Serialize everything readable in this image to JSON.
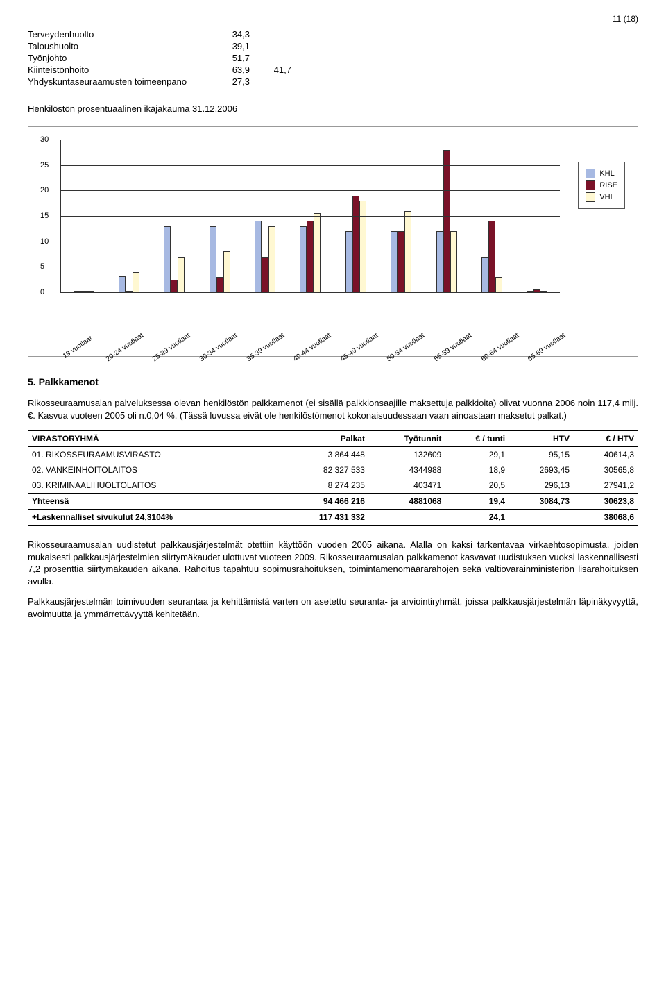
{
  "page_number": "11 (18)",
  "top_rows": [
    {
      "label": "Terveydenhuolto",
      "v1": "34,3",
      "v2": ""
    },
    {
      "label": "Taloushuolto",
      "v1": "39,1",
      "v2": ""
    },
    {
      "label": "Työnjohto",
      "v1": "51,7",
      "v2": ""
    },
    {
      "label": "Kiinteistönhoito",
      "v1": "63,9",
      "v2": "41,7"
    },
    {
      "label": "Yhdyskuntaseuraamusten toimeenpano",
      "v1": "27,3",
      "v2": ""
    }
  ],
  "chart": {
    "title": "Henkilöstön prosentuaalinen ikäjakauma 31.12.2006",
    "ymax": 30,
    "ytick_step": 5,
    "categories": [
      "19 vuotiaat",
      "20-24 vuotiaat",
      "25-29 vuotiaat",
      "30-34 vuotiaat",
      "35-39 vuotiaat",
      "40-44 vuotiaat",
      "45-49 vuotiaat",
      "50-54 vuotiaat",
      "55-59 vuotiaat",
      "60-64 vuotiaat",
      "65-69 vuotiaat"
    ],
    "series": [
      {
        "name": "KHL",
        "color": "#a7b9e2",
        "values": [
          0.3,
          3.2,
          13,
          13,
          14,
          13,
          12,
          12,
          12,
          7,
          0
        ]
      },
      {
        "name": "RISE",
        "color": "#7a1228",
        "values": [
          0,
          0.3,
          2.5,
          3,
          7,
          14,
          19,
          12,
          28,
          14,
          0.5
        ]
      },
      {
        "name": "VHL",
        "color": "#fff8d2",
        "values": [
          0,
          4,
          7,
          8,
          13,
          15.5,
          18,
          16,
          12,
          3,
          0
        ]
      }
    ],
    "background": "#ffffff",
    "grid_color": "#333333"
  },
  "section5_heading": "5. Palkkamenot",
  "para1": "Rikosseuraamusalan palveluksessa olevan henkilöstön palkkamenot (ei sisällä palkkionsaajille maksettuja palkkioita) olivat vuonna 2006 noin 117,4 milj. €. Kasvua vuoteen 2005 oli n.0,04 %. (Tässä luvussa eivät ole henkilöstömenot kokonaisuudessaan vaan ainoastaan maksetut palkat.)",
  "table": {
    "columns": [
      "VIRASTORYHMÄ",
      "Palkat",
      "Työtunnit",
      "€ / tunti",
      "HTV",
      "€ / HTV"
    ],
    "rows": [
      [
        "01. RIKOSSEURAAMUSVIRASTO",
        "3 864 448",
        "132609",
        "29,1",
        "95,15",
        "40614,3"
      ],
      [
        "02. VANKEINHOITOLAITOS",
        "82 327 533",
        "4344988",
        "18,9",
        "2693,45",
        "30565,8"
      ],
      [
        "03. KRIMINAALIHUOLTOLAITOS",
        "8 274 235",
        "403471",
        "20,5",
        "296,13",
        "27941,2"
      ]
    ],
    "total": [
      "Yhteensä",
      "94 466 216",
      "4881068",
      "19,4",
      "3084,73",
      "30623,8"
    ],
    "footer": [
      "+Laskennalliset sivukulut 24,3104%",
      "117 431 332",
      "",
      "24,1",
      "",
      "38068,6"
    ]
  },
  "para2": "Rikosseuraamusalan uudistetut palkkausjärjestelmät otettiin käyttöön vuoden 2005 aikana. Alalla on kaksi tarkentavaa virkaehtosopimusta, joiden mukaisesti palkkausjärjestelmien siirtymäkaudet ulottuvat vuoteen 2009. Rikosseuraamusalan palkkamenot kasvavat uudistuksen vuoksi laskennallisesti 7,2 prosenttia siirtymäkauden aikana. Rahoitus tapahtuu sopimusrahoituksen, toimintamenomäärärahojen sekä valtiovarainministeriön lisärahoituksen avulla.",
  "para3": "Palkkausjärjestelmän toimivuuden seurantaa ja kehittämistä varten on asetettu seuranta- ja arviointiryhmät, joissa palkkausjärjestelmän läpinäkyvyyttä, avoimuutta ja ymmärrettävyyttä kehitetään."
}
